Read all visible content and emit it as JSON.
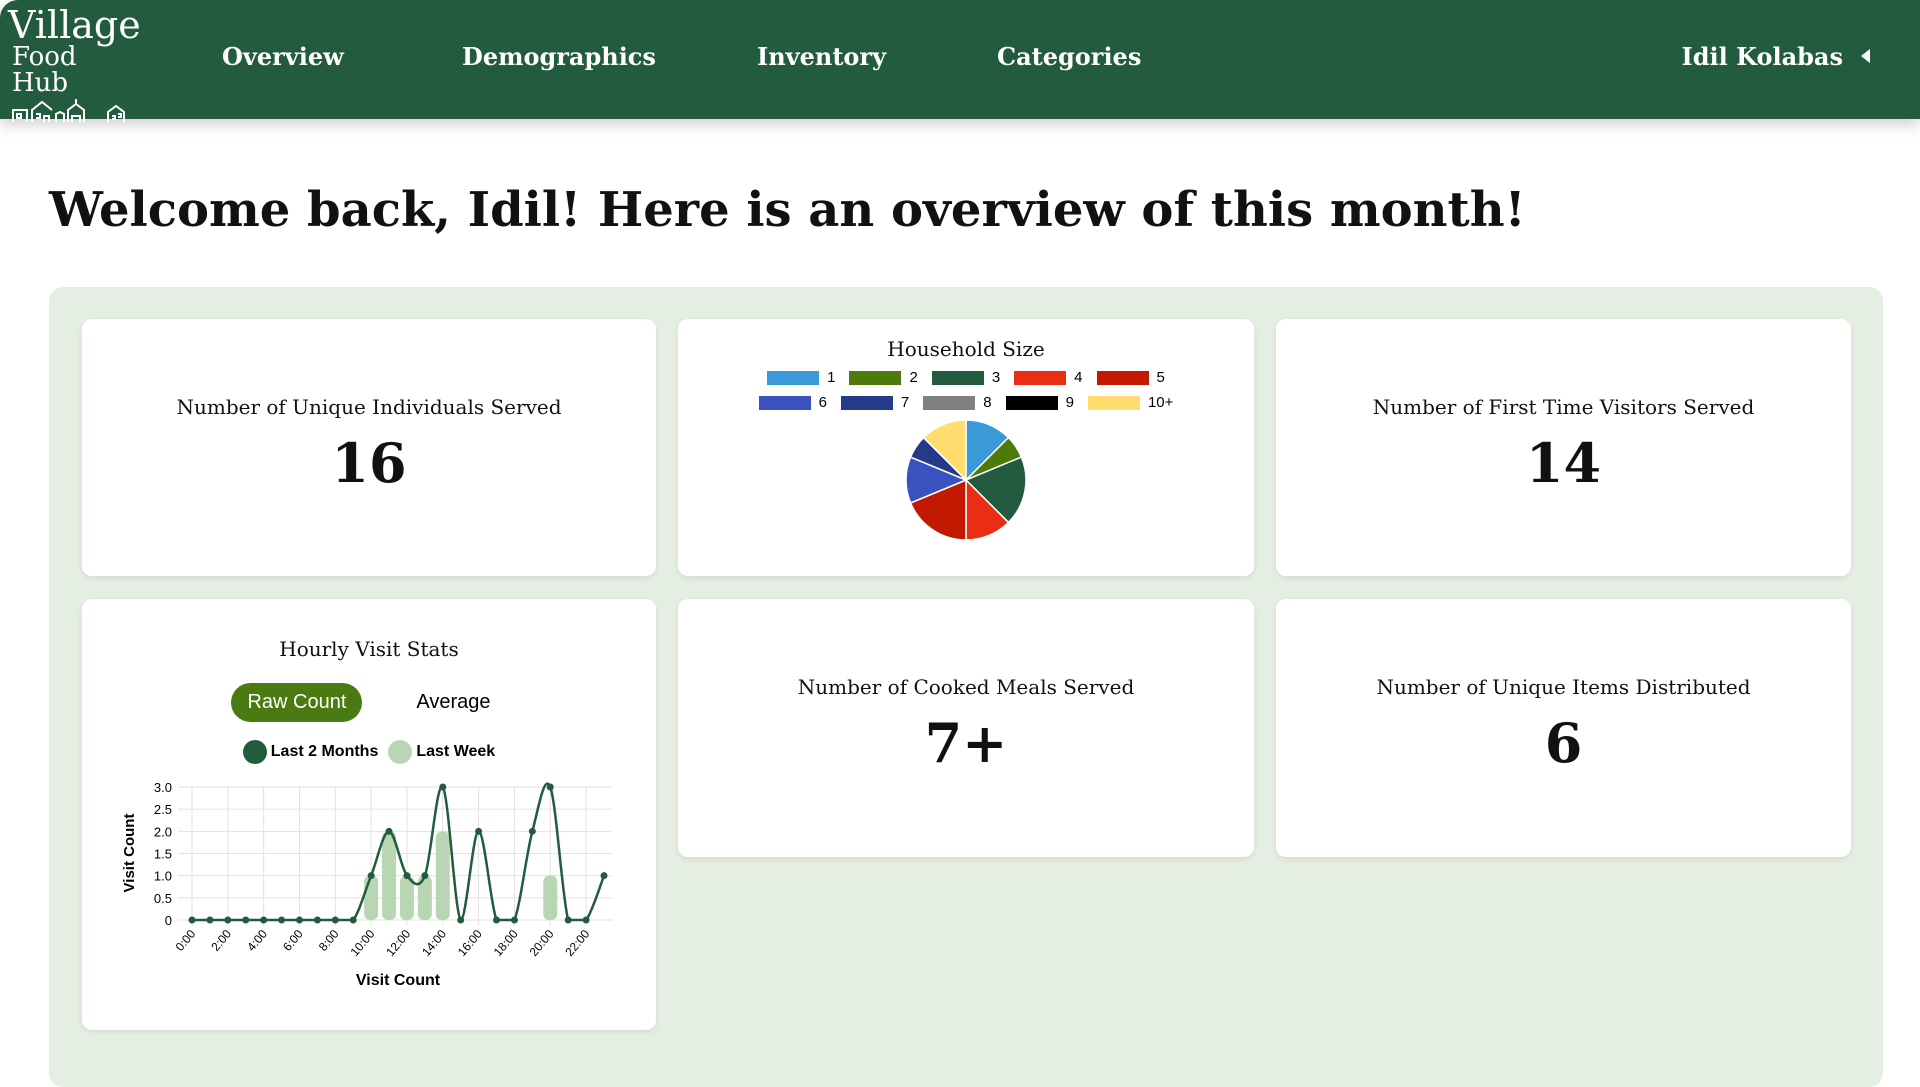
{
  "nav": {
    "logo_line1": "Village",
    "logo_line2": "Food Hub",
    "items": [
      "Overview",
      "Demographics",
      "Inventory",
      "Categories"
    ],
    "user": "Idil Kolabas"
  },
  "welcome": "Welcome back, Idil! Here is an overview of this month!",
  "colors": {
    "nav": "#235b3f",
    "panel": "#e5eee3",
    "line": "#235b3f",
    "bar": "#b9d6b4",
    "toggle_on": "#4a7a12"
  },
  "stats": {
    "unique_individuals": {
      "label": "Number of Unique Individuals Served",
      "value": "16"
    },
    "first_time": {
      "label": "Number of First Time Visitors Served",
      "value": "14"
    },
    "cooked_meals": {
      "label": "Number of Cooked Meals Served",
      "value": "7+"
    },
    "unique_items": {
      "label": "Number of Unique Items Distributed",
      "value": "6"
    }
  },
  "household": {
    "title": "Household Size"
  },
  "hourly": {
    "title": "Hourly Visit Stats",
    "toggle": [
      "Raw Count",
      "Average"
    ],
    "active_toggle": "Raw Count"
  },
  "chart_data": [
    {
      "type": "pie",
      "title": "Household Size",
      "legend_placement": "top",
      "categories": [
        "1",
        "2",
        "3",
        "4",
        "5",
        "6",
        "7",
        "8",
        "9",
        "10+"
      ],
      "values": [
        2,
        1,
        3,
        2,
        3,
        2,
        1,
        0,
        0,
        2
      ],
      "colors": [
        "#3a9ad9",
        "#4e7a0c",
        "#235b3f",
        "#ea2e14",
        "#c21a00",
        "#3a52c0",
        "#263a8a",
        "#808080",
        "#000000",
        "#ffdd6e"
      ]
    },
    {
      "type": "line",
      "title": "",
      "xlabel": "Visit Count",
      "ylabel": "Visit Count",
      "ylim": [
        0,
        3
      ],
      "grid": true,
      "legend_placement": "top",
      "yticks": [
        "0",
        "0.5",
        "1.0",
        "1.5",
        "2.0",
        "2.5",
        "3.0"
      ],
      "xticks": [
        "0:00",
        "2:00",
        "4:00",
        "6:00",
        "8:00",
        "10:00",
        "12:00",
        "14:00",
        "16:00",
        "18:00",
        "20:00",
        "22:00"
      ],
      "x": [
        0,
        1,
        2,
        3,
        4,
        5,
        6,
        7,
        8,
        9,
        10,
        11,
        12,
        13,
        14,
        15,
        16,
        17,
        18,
        19,
        20,
        21,
        22,
        23
      ],
      "series": [
        {
          "name": "Last 2 Months",
          "kind": "line",
          "color": "#235b3f",
          "values": [
            0,
            0,
            0,
            0,
            0,
            0,
            0,
            0,
            0,
            0,
            1,
            2,
            1,
            1,
            3,
            0,
            2,
            0,
            0,
            2,
            3,
            0,
            0,
            1
          ]
        },
        {
          "name": "Last Week",
          "kind": "bar",
          "color": "#b9d6b4",
          "values": [
            0,
            0,
            0,
            0,
            0,
            0,
            0,
            0,
            0,
            0,
            1,
            2,
            1,
            1,
            2,
            0,
            0,
            0,
            0,
            0,
            1,
            0,
            0,
            0
          ]
        }
      ]
    }
  ]
}
